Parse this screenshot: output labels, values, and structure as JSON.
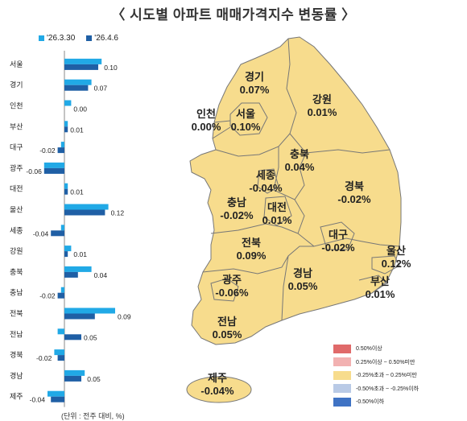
{
  "title": "〈 시도별 아파트 매매가격지수 변동률 〉",
  "legend": [
    {
      "label": "'26.3.30",
      "color": "#21a9e6"
    },
    {
      "label": "'26.4.6",
      "color": "#1f5fa5"
    }
  ],
  "chart_data": {
    "type": "bar",
    "orientation": "horizontal",
    "categories": [
      "서울",
      "경기",
      "인천",
      "부산",
      "대구",
      "광주",
      "대전",
      "울산",
      "세종",
      "강원",
      "충북",
      "충남",
      "전북",
      "전남",
      "경북",
      "경남",
      "제주"
    ],
    "series": [
      {
        "name": "'26.3.30",
        "values": [
          0.11,
          0.08,
          0.02,
          0.01,
          -0.01,
          -0.06,
          0.01,
          0.13,
          -0.01,
          0.02,
          0.08,
          -0.01,
          0.15,
          -0.02,
          -0.03,
          0.06,
          -0.05
        ]
      },
      {
        "name": "'26.4.6",
        "values": [
          0.1,
          0.07,
          0.0,
          0.01,
          -0.02,
          -0.06,
          0.01,
          0.12,
          -0.04,
          0.01,
          0.04,
          -0.02,
          0.09,
          0.05,
          -0.02,
          0.05,
          -0.04
        ]
      }
    ],
    "value_labels": [
      "0.10",
      "0.07",
      "0.00",
      "0.01",
      "-0.02",
      "-0.06",
      "0.01",
      "0.12",
      "-0.04",
      "0.01",
      "0.04",
      "-0.02",
      "0.09",
      "0.05",
      "-0.02",
      "0.05",
      "-0.04"
    ],
    "unit": "%"
  },
  "map": {
    "regions": [
      {
        "name": "경기",
        "value": "0.07%"
      },
      {
        "name": "강원",
        "value": "0.01%"
      },
      {
        "name": "인천",
        "value": "0.00%"
      },
      {
        "name": "서울",
        "value": "0.10%"
      },
      {
        "name": "충북",
        "value": "0.04%"
      },
      {
        "name": "세종",
        "value": "-0.04%"
      },
      {
        "name": "경북",
        "value": "-0.02%"
      },
      {
        "name": "충남",
        "value": "-0.02%"
      },
      {
        "name": "대전",
        "value": "0.01%"
      },
      {
        "name": "대구",
        "value": "-0.02%"
      },
      {
        "name": "울산",
        "value": "0.12%"
      },
      {
        "name": "전북",
        "value": "0.09%"
      },
      {
        "name": "경남",
        "value": "0.05%"
      },
      {
        "name": "부산",
        "value": "0.01%"
      },
      {
        "name": "광주",
        "value": "-0.06%"
      },
      {
        "name": "전남",
        "value": "0.05%"
      },
      {
        "name": "제주",
        "value": "-0.04%"
      }
    ],
    "fill_color": "#f7dc8d",
    "border_color": "#777777",
    "legend": [
      {
        "label": "0.50%이상",
        "color": "#e06a6a"
      },
      {
        "label": "0.25%이상 ~ 0.50%미만",
        "color": "#f2b1b1"
      },
      {
        "label": "-0.25%초과 ~ 0.25%미만",
        "color": "#f7dc8d"
      },
      {
        "label": "-0.50%초과 ~ -0.25%이하",
        "color": "#b9cae6"
      },
      {
        "label": "-0.50%이하",
        "color": "#3f73c4"
      }
    ]
  },
  "footnote": "(단위 : 전주 대비, %)"
}
